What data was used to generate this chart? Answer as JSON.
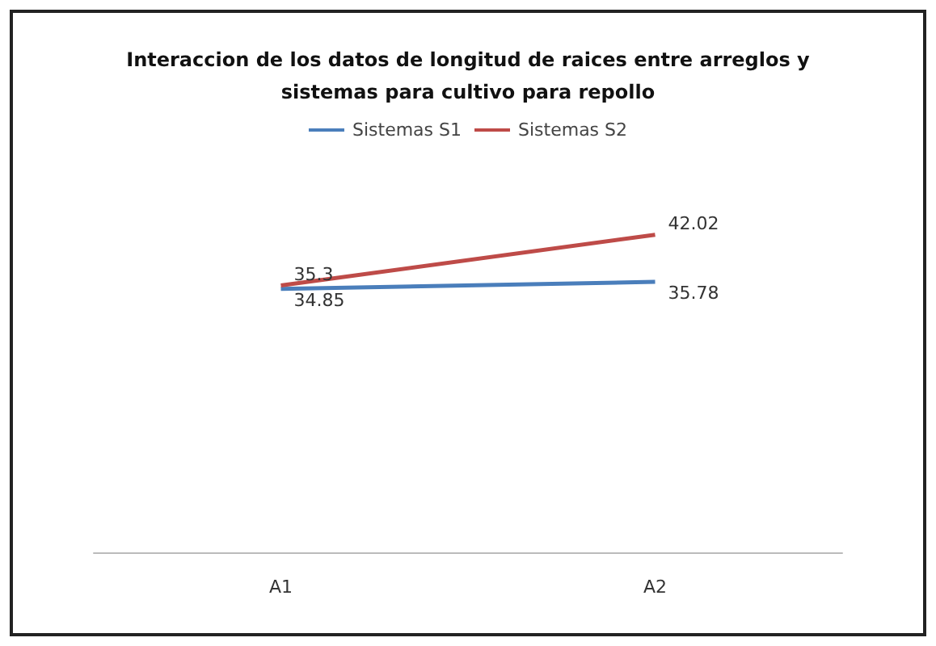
{
  "chart_data": {
    "type": "line",
    "title": "Interaccion de los datos de longitud de raices entre arreglos y\nsistemas para cultivo para repollo",
    "categories": [
      "A1",
      "A2"
    ],
    "series": [
      {
        "name": "Sistemas S1",
        "color": "#4a7ebb",
        "values": [
          34.85,
          35.78
        ]
      },
      {
        "name": "Sistemas S2",
        "color": "#be4b48",
        "values": [
          35.3,
          42.02
        ]
      }
    ],
    "tick_labels": "x",
    "data_labels": true,
    "legend": "top",
    "marker": "none",
    "line_style": "solid"
  }
}
